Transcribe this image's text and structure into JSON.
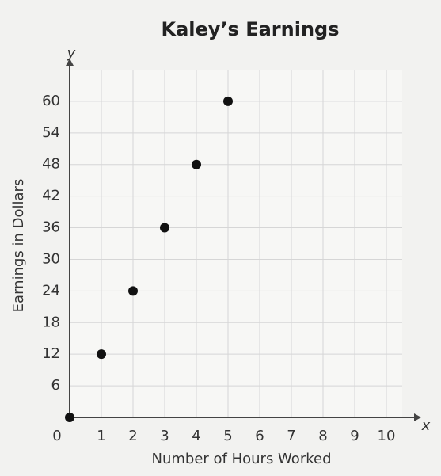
{
  "chart_data": {
    "type": "scatter",
    "title": "Kaley’s Earnings",
    "x_label": "Number of Hours Worked",
    "y_label": "Earnings in Dollars",
    "x_axis_letter": "x",
    "y_axis_letter": "y",
    "x": [
      0,
      1,
      2,
      3,
      4,
      5
    ],
    "values": [
      0,
      12,
      24,
      36,
      48,
      60
    ],
    "color": "#111111",
    "xlim": [
      0,
      10.5
    ],
    "ylim": [
      0,
      66
    ],
    "xticks": [
      0,
      1,
      2,
      3,
      4,
      5,
      6,
      7,
      8,
      9,
      10
    ],
    "yticks": [
      6,
      12,
      18,
      24,
      30,
      36,
      42,
      48,
      54,
      60
    ],
    "grid": true
  }
}
